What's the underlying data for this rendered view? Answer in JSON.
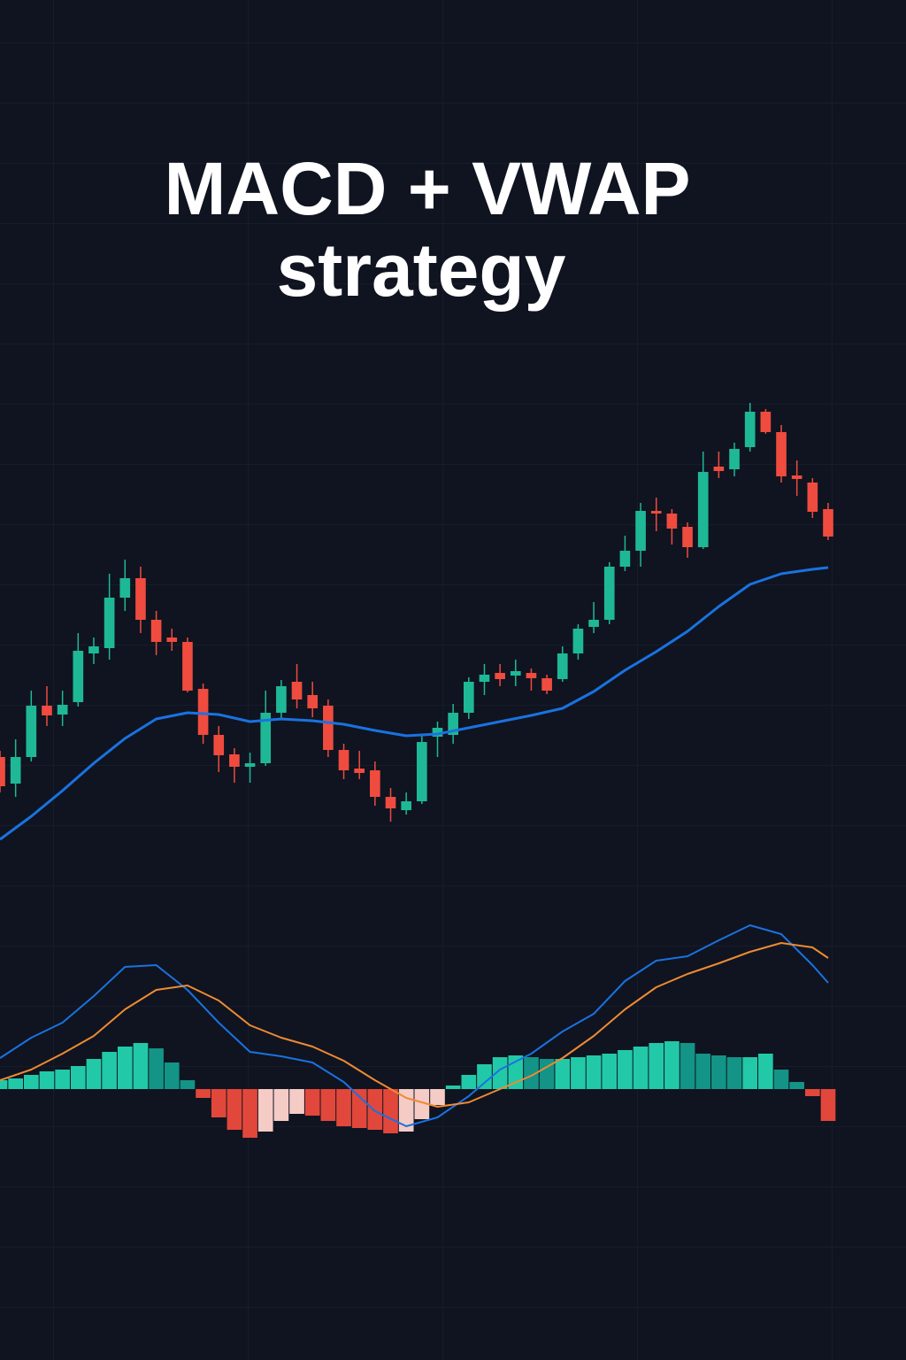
{
  "chart_data": [
    {
      "type": "candlestick",
      "title_lines": [
        "MACD + VWAP",
        "strategy"
      ],
      "up_color": "#1fb897",
      "down_color": "#ef4b3f",
      "xlim": [
        0,
        53
      ],
      "ylim": [
        40,
        560
      ],
      "open": [
        145,
        115,
        145,
        203,
        193,
        207,
        262,
        268,
        325,
        347,
        300,
        280,
        275,
        222,
        170,
        148,
        134,
        138,
        195,
        230,
        215,
        203,
        153,
        132,
        130,
        100,
        85,
        95,
        168,
        170,
        195,
        230,
        240,
        237,
        240,
        234,
        233,
        262,
        292,
        300,
        360,
        378,
        423,
        420,
        405,
        382,
        473,
        470,
        495,
        535,
        512,
        463,
        455,
        425
      ],
      "high": [
        152,
        165,
        220,
        225,
        220,
        285,
        280,
        352,
        368,
        360,
        310,
        290,
        280,
        228,
        180,
        155,
        150,
        220,
        232,
        250,
        230,
        210,
        160,
        152,
        140,
        110,
        105,
        170,
        185,
        205,
        235,
        250,
        250,
        255,
        245,
        238,
        270,
        295,
        320,
        365,
        395,
        432,
        438,
        425,
        410,
        490,
        490,
        500,
        545,
        538,
        520,
        480,
        460,
        432
      ],
      "low": [
        105,
        100,
        140,
        180,
        180,
        202,
        250,
        255,
        310,
        285,
        260,
        265,
        218,
        160,
        128,
        116,
        116,
        135,
        188,
        200,
        190,
        145,
        120,
        120,
        90,
        72,
        80,
        92,
        145,
        160,
        188,
        215,
        225,
        225,
        220,
        216,
        230,
        255,
        285,
        295,
        355,
        360,
        400,
        385,
        370,
        380,
        460,
        462,
        490,
        510,
        455,
        440,
        415,
        390
      ],
      "close": [
        112,
        145,
        203,
        192,
        204,
        265,
        270,
        325,
        347,
        300,
        275,
        275,
        220,
        170,
        147,
        134,
        138,
        195,
        225,
        210,
        200,
        153,
        130,
        127,
        100,
        87,
        95,
        162,
        178,
        195,
        230,
        238,
        233,
        242,
        234,
        220,
        262,
        290,
        300,
        360,
        378,
        423,
        420,
        403,
        382,
        467,
        468,
        493,
        535,
        512,
        462,
        459,
        422,
        394
      ],
      "lines": [
        {
          "color": "#1a72e0",
          "x": [
            0,
            2,
            4,
            6,
            8,
            10,
            12,
            14,
            16,
            18,
            20,
            22,
            24,
            26,
            28,
            30,
            32,
            34,
            36,
            38,
            40,
            42,
            44,
            46,
            48,
            50,
            52,
            53
          ],
          "values": [
            52,
            78,
            107,
            138,
            166,
            188,
            195,
            193,
            185,
            188,
            186,
            182,
            175,
            169,
            171,
            178,
            185,
            192,
            200,
            219,
            243,
            264,
            287,
            315,
            340,
            352,
            357,
            359
          ]
        }
      ]
    },
    {
      "type": "macd",
      "xlim": [
        0,
        53
      ],
      "ylim": [
        -70,
        200
      ],
      "histogram": [
        10,
        12,
        16,
        20,
        22,
        26,
        34,
        42,
        48,
        52,
        46,
        30,
        10,
        -10,
        -32,
        -46,
        -55,
        -48,
        -36,
        -28,
        -30,
        -36,
        -42,
        -44,
        -46,
        -50,
        -48,
        -34,
        -18,
        4,
        16,
        28,
        36,
        38,
        36,
        34,
        34,
        36,
        38,
        40,
        44,
        48,
        52,
        54,
        52,
        40,
        38,
        36,
        36,
        40,
        22,
        8,
        -8,
        -36
      ],
      "histogram_colors": {
        "positive_rising": "#22c9a8",
        "positive_falling": "#139486",
        "negative_falling": "#e2473b",
        "negative_rising": "#f5cbc6"
      },
      "lines": [
        {
          "color": "#1a72e0",
          "x": [
            0,
            2,
            4,
            6,
            8,
            10,
            12,
            14,
            16,
            18,
            20,
            22,
            24,
            26,
            28,
            30,
            32,
            34,
            36,
            38,
            40,
            42,
            44,
            46,
            48,
            50,
            52,
            53
          ],
          "values": [
            35,
            58,
            75,
            105,
            138,
            140,
            112,
            75,
            42,
            37,
            30,
            8,
            -25,
            -42,
            -32,
            -8,
            22,
            40,
            65,
            85,
            122,
            145,
            150,
            168,
            185,
            175,
            140,
            120
          ]
        },
        {
          "color": "#ef8a33",
          "x": [
            0,
            2,
            4,
            6,
            8,
            10,
            12,
            14,
            16,
            18,
            20,
            22,
            24,
            26,
            28,
            30,
            32,
            34,
            36,
            38,
            40,
            42,
            44,
            46,
            48,
            50,
            52,
            53
          ],
          "values": [
            10,
            22,
            40,
            60,
            90,
            112,
            117,
            100,
            72,
            58,
            48,
            32,
            10,
            -10,
            -20,
            -15,
            0,
            15,
            35,
            60,
            90,
            115,
            130,
            142,
            155,
            165,
            160,
            148
          ]
        }
      ]
    }
  ]
}
